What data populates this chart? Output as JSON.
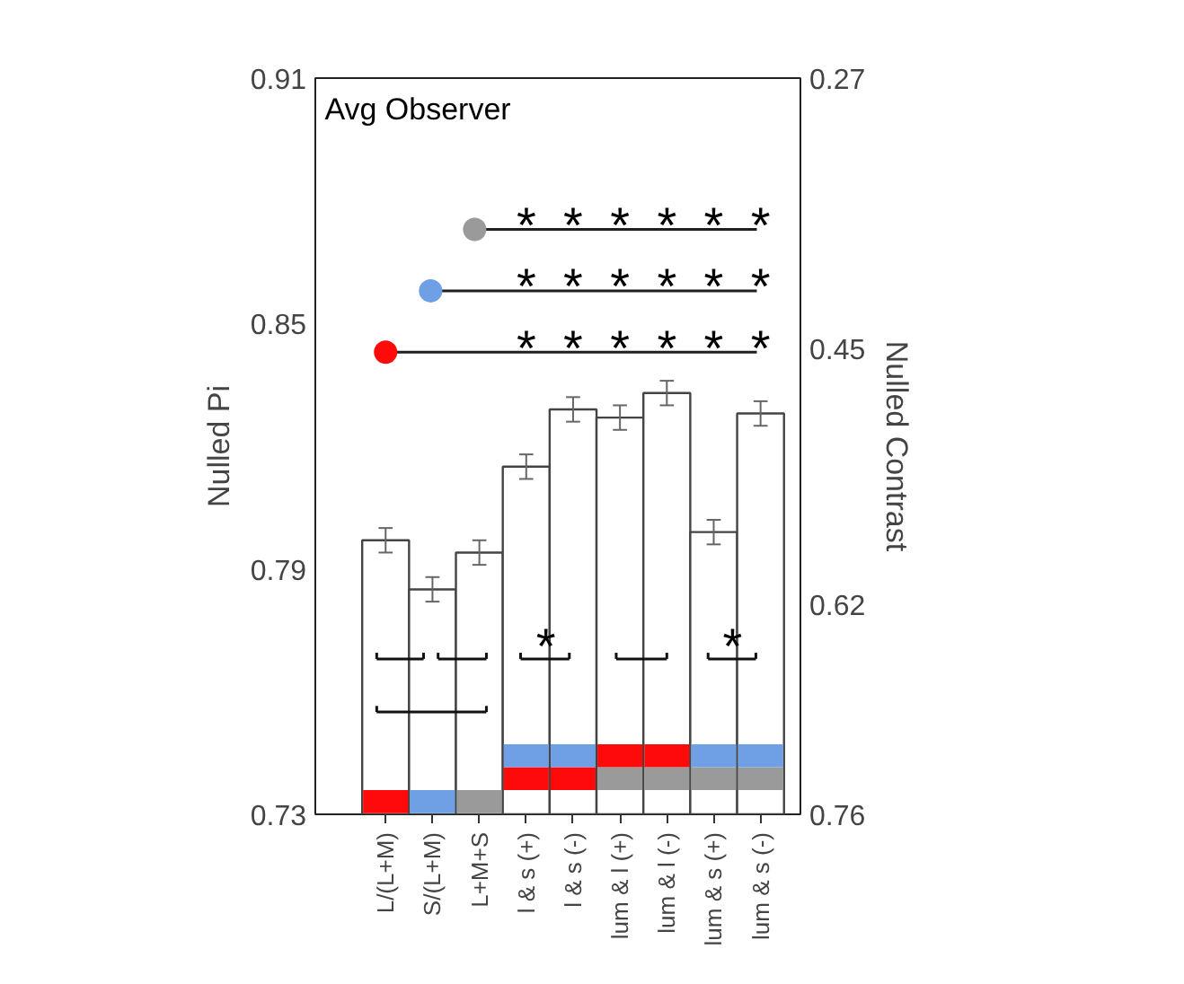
{
  "chart_data": {
    "type": "bar",
    "title": "Avg Observer",
    "ylabel": "Nulled Pi",
    "y2label": "Nulled Contrast",
    "categories": [
      "L/(L+M)",
      "S/(L+M)",
      "L+M+S",
      "l & s (+)",
      "l & s (-)",
      "lum & l (+)",
      "lum & l (-)",
      "lum & s (+)",
      "lum & s (-)"
    ],
    "values": [
      0.797,
      0.785,
      0.794,
      0.815,
      0.829,
      0.827,
      0.833,
      0.799,
      0.828
    ],
    "errors": [
      0.003,
      0.003,
      0.003,
      0.003,
      0.003,
      0.003,
      0.003,
      0.003,
      0.003
    ],
    "color": "#ffffff",
    "ylim": [
      0.73,
      0.91
    ],
    "yticks": [
      0.73,
      0.79,
      0.85,
      0.91
    ],
    "y2lim": [
      0.76,
      0.27
    ],
    "y2ticks": [
      0.76,
      0.62,
      0.45,
      0.27
    ],
    "annotations": [
      "*",
      "*",
      "*",
      "*",
      "*",
      "*",
      "*",
      "*",
      "*",
      "*",
      "*",
      "*",
      "*",
      "*",
      "*",
      "*",
      "*",
      "*",
      "*",
      "*"
    ],
    "grid": false
  }
}
